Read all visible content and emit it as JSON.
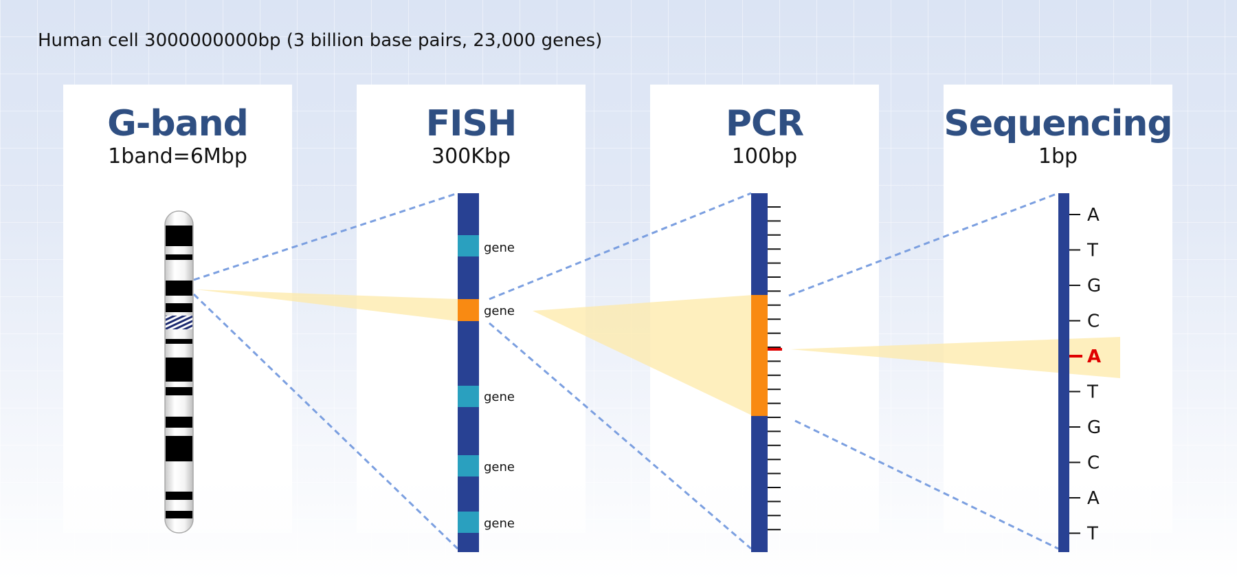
{
  "headline": "Human cell 3000000000bp (3 billion base pairs, 23,000 genes)",
  "panels": [
    {
      "title": "G-band",
      "subtitle": "1band=6Mbp"
    },
    {
      "title": "FISH",
      "subtitle": "300Kbp"
    },
    {
      "title": "PCR",
      "subtitle": "100bp"
    },
    {
      "title": "Sequencing",
      "subtitle": "1bp"
    }
  ],
  "fish_gene_labels": [
    "gene",
    "gene",
    "gene",
    "gene",
    "gene"
  ],
  "bases": [
    "A",
    "T",
    "G",
    "C",
    "A",
    "T",
    "G",
    "C",
    "A",
    "T"
  ],
  "highlighted_base_index": 4,
  "colors": {
    "title": "#2f4f82",
    "bar": "#284193",
    "gene": "#2aa0bf",
    "highlight_gene": "#f98a12",
    "zoom_line": "#7b9fe0",
    "zoom_fill": "#fdeaa8",
    "highlight_base": "#e00000"
  }
}
